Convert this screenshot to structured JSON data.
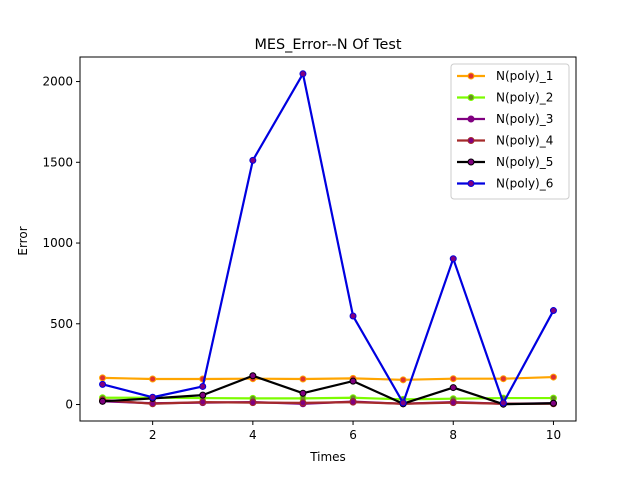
{
  "chart_data": {
    "type": "line",
    "title": "MES_Error--N Of Test",
    "xlabel": "Times",
    "ylabel": "Error",
    "x": [
      1,
      2,
      3,
      4,
      5,
      6,
      7,
      8,
      9,
      10
    ],
    "xlim": [
      0.55,
      10.45
    ],
    "ylim": [
      -102,
      2152
    ],
    "xticks": [
      2,
      4,
      6,
      8,
      10
    ],
    "yticks": [
      0,
      500,
      1000,
      1500,
      2000
    ],
    "grid": false,
    "legend_position": "upper right",
    "series": [
      {
        "name": "N(poly)_1",
        "color": "#ffa500",
        "marker_color": "#e03030",
        "values": [
          165,
          158,
          158,
          160,
          158,
          162,
          153,
          160,
          160,
          170
        ]
      },
      {
        "name": "N(poly)_2",
        "color": "#7cfc00",
        "marker_color": "#6b8e23",
        "values": [
          42,
          42,
          40,
          38,
          38,
          42,
          32,
          36,
          40,
          40
        ]
      },
      {
        "name": "N(poly)_3",
        "color": "#800080",
        "marker_color": "#800080",
        "values": [
          20,
          8,
          12,
          15,
          5,
          18,
          5,
          15,
          5,
          8
        ]
      },
      {
        "name": "N(poly)_4",
        "color": "#a52a2a",
        "marker_color": "#800080",
        "values": [
          28,
          5,
          15,
          12,
          10,
          15,
          5,
          12,
          5,
          5
        ]
      },
      {
        "name": "N(poly)_5",
        "color": "#000000",
        "marker_color": "#800080",
        "values": [
          20,
          38,
          58,
          178,
          70,
          145,
          5,
          105,
          2,
          8
        ]
      },
      {
        "name": "N(poly)_6",
        "color": "#0000e0",
        "marker_color": "#800080",
        "values": [
          125,
          45,
          112,
          1512,
          2048,
          548,
          10,
          903,
          10,
          582
        ]
      }
    ]
  }
}
